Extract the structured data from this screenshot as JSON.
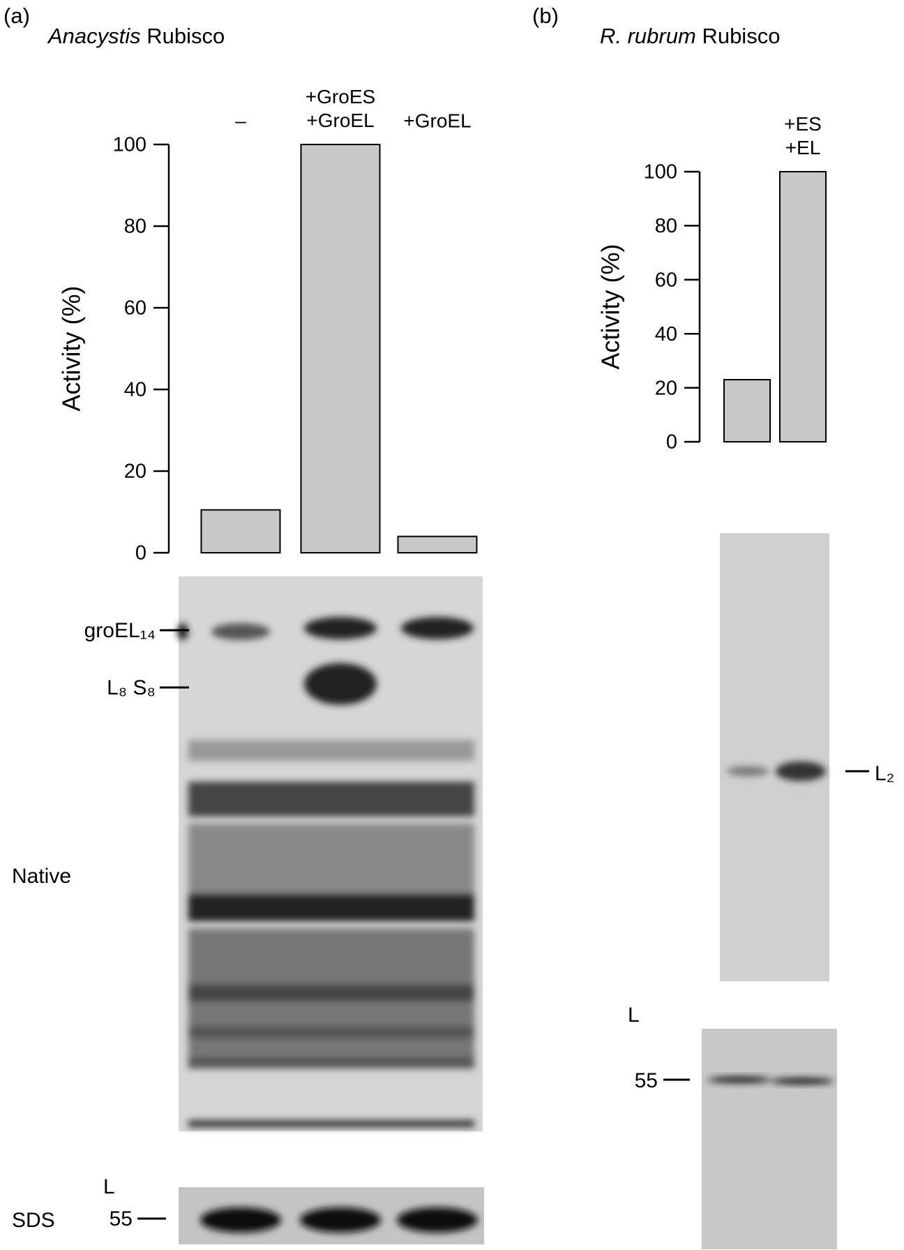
{
  "chart_data": [
    {
      "type": "bar",
      "panel": "(a)",
      "title_italic": "Anacystis",
      "title": "Rubisco",
      "y_label": "Activity (%)",
      "categories": [
        "–",
        "+GroES\n+GroEL",
        "+GroEL"
      ],
      "values": [
        10.5,
        100,
        4
      ],
      "color": "#c8c8c8",
      "ylim": [
        0,
        100
      ],
      "yticks": [
        0,
        20,
        40,
        60,
        80,
        100
      ],
      "gel_labels": {
        "groel": "groEL₁₄",
        "l8s8": "L₈ S₈",
        "native": "Native",
        "sds": "SDS",
        "l": "L",
        "kda": "55"
      }
    },
    {
      "type": "bar",
      "panel": "(b)",
      "title_italic": "R. rubrum",
      "title": "Rubisco",
      "y_label": "Activity (%)",
      "categories": [
        null,
        "+ES\n+EL"
      ],
      "values": [
        23,
        100
      ],
      "color": "#c8c8c8",
      "ylim": [
        0,
        100
      ],
      "yticks": [
        0,
        20,
        40,
        60,
        80,
        100
      ],
      "gel_labels": {
        "l2": "L₂",
        "l": "L",
        "kda": "55"
      }
    }
  ]
}
